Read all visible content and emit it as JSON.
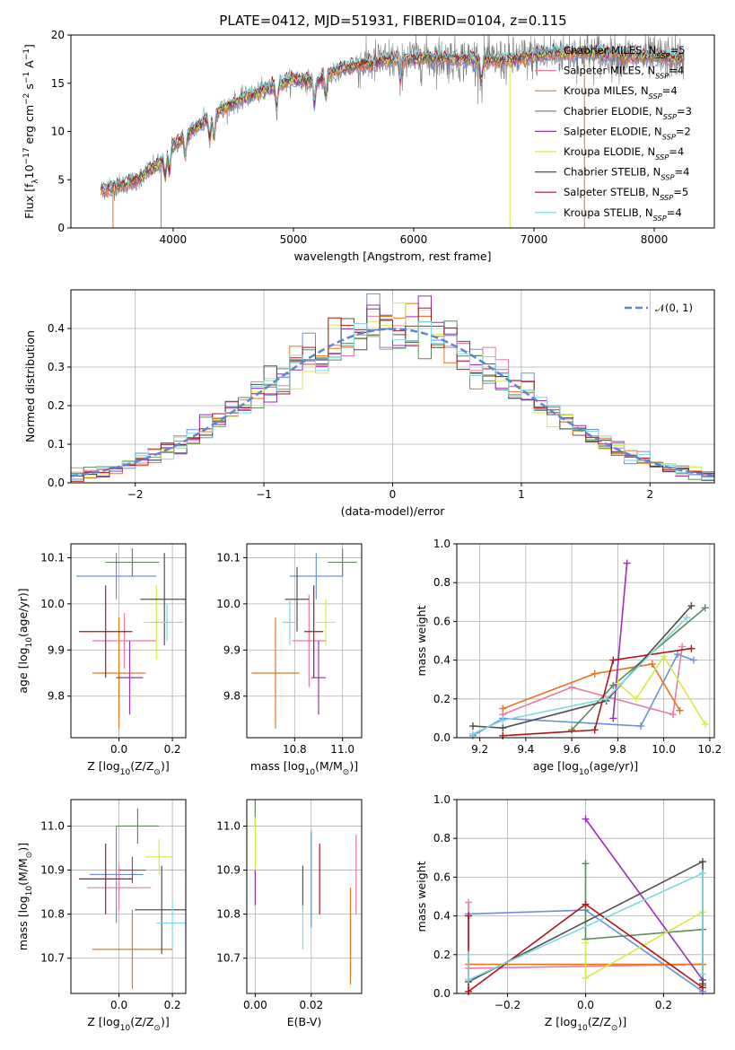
{
  "figure": {
    "title": "PLATE=0412, MJD=51931, FIBERID=0104, z=0.115"
  },
  "colors": {
    "chabrier_miles": "#6a8fdc",
    "salpeter_miles": "#e87ca0",
    "kroupa_miles": "#e5761f",
    "chabrier_elodie": "#5b8a5b",
    "salpeter_elodie": "#9b2fb8",
    "kroupa_elodie": "#d6ec45",
    "chabrier_stelib": "#505050",
    "salpeter_stelib": "#b01515",
    "kroupa_stelib": "#7fd9de",
    "data_spectrum": "#7a7a7a",
    "gaussian": "#5b86d8",
    "grid": "#b0b0b0"
  },
  "chart_data": [
    {
      "id": "spectrum",
      "type": "line",
      "title": "PLATE=0412, MJD=51931, FIBERID=0104, z=0.115",
      "xlabel": "wavelength [Angstrom, rest frame]",
      "ylabel_parts": [
        "Flux [f",
        "λ",
        "10",
        "−17",
        " erg cm",
        "−2",
        " s",
        "−1",
        " A",
        "−1",
        "]"
      ],
      "xlim": [
        3150,
        8500
      ],
      "ylim": [
        0,
        20
      ],
      "xticks": [
        4000,
        5000,
        6000,
        7000,
        8000
      ],
      "yticks": [
        0,
        5,
        10,
        15,
        20
      ],
      "grid": false,
      "legend_position": "top-right",
      "continuum": {
        "x": [
          3400,
          3500,
          3700,
          3900,
          4000,
          4200,
          4400,
          4600,
          4800,
          5000,
          5200,
          5400,
          5600,
          5800,
          6000,
          6200,
          6400,
          6600,
          6800,
          7000,
          7200,
          7400,
          7600,
          7800,
          8000,
          8200
        ],
        "y": [
          4.0,
          4.2,
          5.0,
          6.8,
          8.5,
          10.5,
          12.3,
          13.5,
          14.5,
          15.4,
          15.2,
          16.5,
          17.0,
          17.4,
          17.6,
          17.6,
          17.5,
          17.4,
          17.4,
          17.8,
          18.1,
          18.2,
          18.0,
          17.8,
          17.7,
          17.6
        ]
      },
      "wavelength_range": [
        3400,
        8250
      ],
      "legend": [
        {
          "label": "Chabrier MILES, N",
          "sub": "SSP",
          "count": "=5",
          "color_key": "chabrier_miles"
        },
        {
          "label": "Salpeter MILES, N",
          "sub": "SSP",
          "count": "=4",
          "color_key": "salpeter_miles"
        },
        {
          "label": "Kroupa MILES, N",
          "sub": "SSP",
          "count": "=4",
          "color_key": "kroupa_miles"
        },
        {
          "label": "Chabrier ELODIE, N",
          "sub": "SSP",
          "count": "=3",
          "color_key": "chabrier_elodie"
        },
        {
          "label": "Salpeter ELODIE, N",
          "sub": "SSP",
          "count": "=2",
          "color_key": "salpeter_elodie"
        },
        {
          "label": "Kroupa ELODIE, N",
          "sub": "SSP",
          "count": "=4",
          "color_key": "kroupa_elodie"
        },
        {
          "label": "Chabrier STELIB, N",
          "sub": "SSP",
          "count": "=4",
          "color_key": "chabrier_stelib"
        },
        {
          "label": "Salpeter STELIB, N",
          "sub": "SSP",
          "count": "=5",
          "color_key": "salpeter_stelib"
        },
        {
          "label": "Kroupa STELIB, N",
          "sub": "SSP",
          "count": "=4",
          "color_key": "kroupa_stelib"
        }
      ]
    },
    {
      "id": "residuals",
      "type": "line",
      "xlabel": "(data-model)/error",
      "ylabel": "Normed distribution",
      "xlim": [
        -2.5,
        2.5
      ],
      "ylim": [
        0,
        0.5
      ],
      "xticks": [
        -2,
        -1,
        0,
        1,
        2
      ],
      "yticks": [
        0.0,
        0.1,
        0.2,
        0.3,
        0.4
      ],
      "grid": true,
      "legend_position": "top-right",
      "gaussian_label": "𝒩(0, 1)",
      "bin_width": 0.1
    },
    {
      "id": "age_vs_Z",
      "type": "scatter",
      "xlabel_parts": [
        "Z [log",
        "10",
        "(Z/Z",
        "⊙",
        ")]"
      ],
      "ylabel_parts": [
        "age  [log",
        "10",
        "(age/yr)]"
      ],
      "xlim": [
        -0.18,
        0.25
      ],
      "ylim": [
        9.71,
        10.13
      ],
      "xticks": [
        0.0,
        0.2
      ],
      "yticks": [
        9.8,
        9.9,
        10.0,
        10.1
      ],
      "grid": true,
      "points": [
        {
          "x": -0.01,
          "y": 10.06,
          "xerr": 0.15,
          "yerr": 0.05,
          "color_key": "chabrier_miles"
        },
        {
          "x": 0.02,
          "y": 9.92,
          "xerr": 0.12,
          "yerr": 0.06,
          "color_key": "salpeter_miles"
        },
        {
          "x": 0.0,
          "y": 9.85,
          "xerr": 0.1,
          "yerr": 0.12,
          "color_key": "kroupa_miles"
        },
        {
          "x": 0.05,
          "y": 10.09,
          "xerr": 0.1,
          "yerr": 0.03,
          "color_key": "chabrier_elodie"
        },
        {
          "x": 0.04,
          "y": 9.84,
          "xerr": 0.05,
          "yerr": 0.08,
          "color_key": "salpeter_elodie"
        },
        {
          "x": 0.14,
          "y": 9.96,
          "xerr": 0.05,
          "yerr": 0.08,
          "color_key": "kroupa_elodie"
        },
        {
          "x": 0.17,
          "y": 10.01,
          "xerr": 0.09,
          "yerr": 0.1,
          "color_key": "chabrier_stelib"
        },
        {
          "x": -0.05,
          "y": 9.94,
          "xerr": 0.1,
          "yerr": 0.1,
          "color_key": "salpeter_stelib"
        },
        {
          "x": 0.18,
          "y": 9.96,
          "xerr": 0.06,
          "yerr": 0.04,
          "color_key": "kroupa_stelib"
        }
      ]
    },
    {
      "id": "age_vs_mass",
      "type": "scatter",
      "xlabel_parts": [
        "mass [log",
        "10",
        "(M/M",
        "⊙",
        ")]"
      ],
      "ylabel": "",
      "xlim": [
        10.6,
        11.08
      ],
      "ylim": [
        9.71,
        10.13
      ],
      "xticks": [
        10.8,
        11.0
      ],
      "yticks": [
        9.8,
        9.9,
        10.0,
        10.1
      ],
      "grid": true,
      "points": [
        {
          "x": 10.89,
          "y": 10.06,
          "xerr": 0.11,
          "yerr": 0.05,
          "color_key": "chabrier_miles"
        },
        {
          "x": 10.86,
          "y": 9.92,
          "xerr": 0.07,
          "yerr": 0.1,
          "color_key": "salpeter_miles"
        },
        {
          "x": 10.72,
          "y": 9.85,
          "xerr": 0.1,
          "yerr": 0.12,
          "color_key": "kroupa_miles"
        },
        {
          "x": 11.0,
          "y": 10.09,
          "xerr": 0.06,
          "yerr": 0.03,
          "color_key": "chabrier_elodie"
        },
        {
          "x": 10.9,
          "y": 9.84,
          "xerr": 0.03,
          "yerr": 0.08,
          "color_key": "salpeter_elodie"
        },
        {
          "x": 10.93,
          "y": 9.96,
          "xerr": 0.04,
          "yerr": 0.05,
          "color_key": "kroupa_elodie"
        },
        {
          "x": 10.81,
          "y": 10.01,
          "xerr": 0.05,
          "yerr": 0.07,
          "color_key": "chabrier_stelib"
        },
        {
          "x": 10.88,
          "y": 9.94,
          "xerr": 0.04,
          "yerr": 0.1,
          "color_key": "salpeter_stelib"
        },
        {
          "x": 10.78,
          "y": 9.96,
          "xerr": 0.03,
          "yerr": 0.05,
          "color_key": "kroupa_stelib"
        }
      ]
    },
    {
      "id": "weight_vs_age",
      "type": "line",
      "xlabel_parts": [
        "age  [log",
        "10",
        "(age/yr)]"
      ],
      "ylabel": "mass weight",
      "xlim": [
        9.1,
        10.22
      ],
      "ylim": [
        0,
        1.0
      ],
      "xticks": [
        9.2,
        9.4,
        9.6,
        9.8,
        10.0,
        10.2
      ],
      "yticks": [
        0.0,
        0.2,
        0.4,
        0.6,
        0.8,
        1.0
      ],
      "grid": true,
      "series": [
        {
          "color_key": "chabrier_miles",
          "x": [
            9.17,
            9.3,
            9.9,
            10.06,
            10.13
          ],
          "y": [
            0.01,
            0.1,
            0.06,
            0.43,
            0.4
          ]
        },
        {
          "color_key": "salpeter_miles",
          "x": [
            9.3,
            9.6,
            10.04,
            10.08
          ],
          "y": [
            0.12,
            0.26,
            0.12,
            0.47
          ]
        },
        {
          "color_key": "kroupa_miles",
          "x": [
            9.3,
            9.7,
            9.95,
            10.07
          ],
          "y": [
            0.15,
            0.33,
            0.38,
            0.14
          ]
        },
        {
          "color_key": "chabrier_elodie",
          "x": [
            9.6,
            9.78,
            10.18
          ],
          "y": [
            0.04,
            0.27,
            0.67
          ]
        },
        {
          "color_key": "salpeter_elodie",
          "x": [
            9.78,
            9.84
          ],
          "y": [
            0.1,
            0.9
          ]
        },
        {
          "color_key": "kroupa_elodie",
          "x": [
            9.8,
            9.88,
            10.0,
            10.18
          ],
          "y": [
            0.28,
            0.2,
            0.42,
            0.07
          ]
        },
        {
          "color_key": "chabrier_stelib",
          "x": [
            9.17,
            9.3,
            9.75,
            10.12
          ],
          "y": [
            0.06,
            0.05,
            0.19,
            0.68
          ]
        },
        {
          "color_key": "salpeter_stelib",
          "x": [
            9.3,
            9.7,
            9.78,
            10.12
          ],
          "y": [
            0.01,
            0.04,
            0.4,
            0.46
          ]
        },
        {
          "color_key": "kroupa_stelib",
          "x": [
            9.17,
            9.3,
            9.75,
            10.1
          ],
          "y": [
            0.02,
            0.09,
            0.2,
            0.62
          ]
        }
      ]
    },
    {
      "id": "mass_vs_Z",
      "type": "scatter",
      "xlabel_parts": [
        "Z [log",
        "10",
        "(Z/Z",
        "⊙",
        ")]"
      ],
      "ylabel_parts": [
        "mass [log",
        "10",
        "(M/M",
        "⊙",
        ")]"
      ],
      "xlim": [
        -0.18,
        0.25
      ],
      "ylim": [
        10.62,
        11.06
      ],
      "xticks": [
        0.0,
        0.2
      ],
      "yticks": [
        10.7,
        10.8,
        10.9,
        11.0
      ],
      "grid": true,
      "points": [
        {
          "x": -0.01,
          "y": 10.89,
          "xerr": 0.1,
          "yerr": 0.11,
          "color_key": "chabrier_miles"
        },
        {
          "x": 0.0,
          "y": 10.86,
          "xerr": 0.12,
          "yerr": 0.05,
          "color_key": "salpeter_miles"
        },
        {
          "x": 0.05,
          "y": 10.72,
          "xerr": 0.15,
          "yerr": 0.09,
          "color_key": "kroupa_miles"
        },
        {
          "x": 0.07,
          "y": 11.0,
          "xerr": 0.08,
          "yerr": 0.04,
          "color_key": "chabrier_elodie"
        },
        {
          "x": 0.05,
          "y": 10.9,
          "xerr": 0.05,
          "yerr": 0.03,
          "color_key": "salpeter_elodie"
        },
        {
          "x": 0.15,
          "y": 10.93,
          "xerr": 0.05,
          "yerr": 0.04,
          "color_key": "kroupa_elodie"
        },
        {
          "x": 0.16,
          "y": 10.81,
          "xerr": 0.1,
          "yerr": 0.1,
          "color_key": "chabrier_stelib"
        },
        {
          "x": -0.05,
          "y": 10.88,
          "xerr": 0.1,
          "yerr": 0.08,
          "color_key": "salpeter_stelib"
        },
        {
          "x": 0.2,
          "y": 10.78,
          "xerr": 0.06,
          "yerr": 0.05,
          "color_key": "kroupa_stelib"
        }
      ]
    },
    {
      "id": "mass_vs_ebv",
      "type": "scatter",
      "xlabel": "E(B-V)",
      "ylabel": "",
      "xlim": [
        -0.003,
        0.038
      ],
      "ylim": [
        10.62,
        11.06
      ],
      "xticks": [
        0.0,
        0.02
      ],
      "yticks": [
        10.7,
        10.8,
        10.9,
        11.0
      ],
      "grid": true,
      "points": [
        {
          "x": 0.0,
          "y": 11.07,
          "yerr": 0.07,
          "color_key": "chabrier_elodie"
        },
        {
          "x": 0.0,
          "y": 10.95,
          "yerr": 0.07,
          "color_key": "kroupa_elodie"
        },
        {
          "x": 0.0,
          "y": 10.86,
          "yerr": 0.04,
          "color_key": "salpeter_elodie"
        },
        {
          "x": 0.017,
          "y": 10.86,
          "yerr": 0.05,
          "color_key": "chabrier_stelib"
        },
        {
          "x": 0.017,
          "y": 10.77,
          "yerr": 0.05,
          "color_key": "kroupa_stelib"
        },
        {
          "x": 0.02,
          "y": 10.88,
          "yerr": 0.11,
          "color_key": "chabrier_miles"
        },
        {
          "x": 0.023,
          "y": 10.88,
          "yerr": 0.08,
          "color_key": "salpeter_stelib"
        },
        {
          "x": 0.034,
          "y": 10.75,
          "yerr": 0.11,
          "color_key": "kroupa_miles"
        },
        {
          "x": 0.036,
          "y": 10.89,
          "yerr": 0.09,
          "color_key": "salpeter_miles"
        }
      ]
    },
    {
      "id": "weight_vs_Z",
      "type": "line",
      "xlabel_parts": [
        "Z [log",
        "10",
        "(Z/Z",
        "⊙",
        ")]"
      ],
      "ylabel": "mass weight",
      "xlim": [
        -0.33,
        0.33
      ],
      "ylim": [
        0,
        1.0
      ],
      "xticks": [
        -0.2,
        0.0,
        0.2
      ],
      "yticks": [
        0.0,
        0.2,
        0.4,
        0.6,
        0.8,
        1.0
      ],
      "grid": true,
      "series": [
        {
          "color_key": "chabrier_miles",
          "x": [
            -0.3,
            0.0,
            0.3
          ],
          "y": [
            0.41,
            0.43,
            0.01
          ]
        },
        {
          "color_key": "salpeter_miles",
          "x": [
            -0.3,
            -0.3,
            0.3
          ],
          "y": [
            0.47,
            0.13,
            0.15
          ]
        },
        {
          "color_key": "kroupa_miles",
          "x": [
            -0.3,
            0.3
          ],
          "y": [
            0.15,
            0.15
          ]
        },
        {
          "color_key": "chabrier_elodie",
          "x": [
            0.0,
            0.0,
            0.3,
            0.3
          ],
          "y": [
            0.67,
            0.28,
            0.33,
            0.04
          ]
        },
        {
          "color_key": "salpeter_elodie",
          "x": [
            0.0,
            0.3
          ],
          "y": [
            0.9,
            0.07
          ]
        },
        {
          "color_key": "kroupa_elodie",
          "x": [
            0.0,
            0.0,
            0.3
          ],
          "y": [
            0.26,
            0.08,
            0.42
          ]
        },
        {
          "color_key": "chabrier_stelib",
          "x": [
            -0.3,
            0.3,
            0.3
          ],
          "y": [
            0.06,
            0.68,
            0.05
          ]
        },
        {
          "color_key": "salpeter_stelib",
          "x": [
            -0.3,
            -0.3,
            0.0,
            0.3
          ],
          "y": [
            0.4,
            0.01,
            0.46,
            0.03
          ]
        },
        {
          "color_key": "kroupa_stelib",
          "x": [
            -0.3,
            -0.3,
            0.3,
            0.3
          ],
          "y": [
            0.2,
            0.07,
            0.62,
            0.1
          ]
        }
      ]
    }
  ]
}
